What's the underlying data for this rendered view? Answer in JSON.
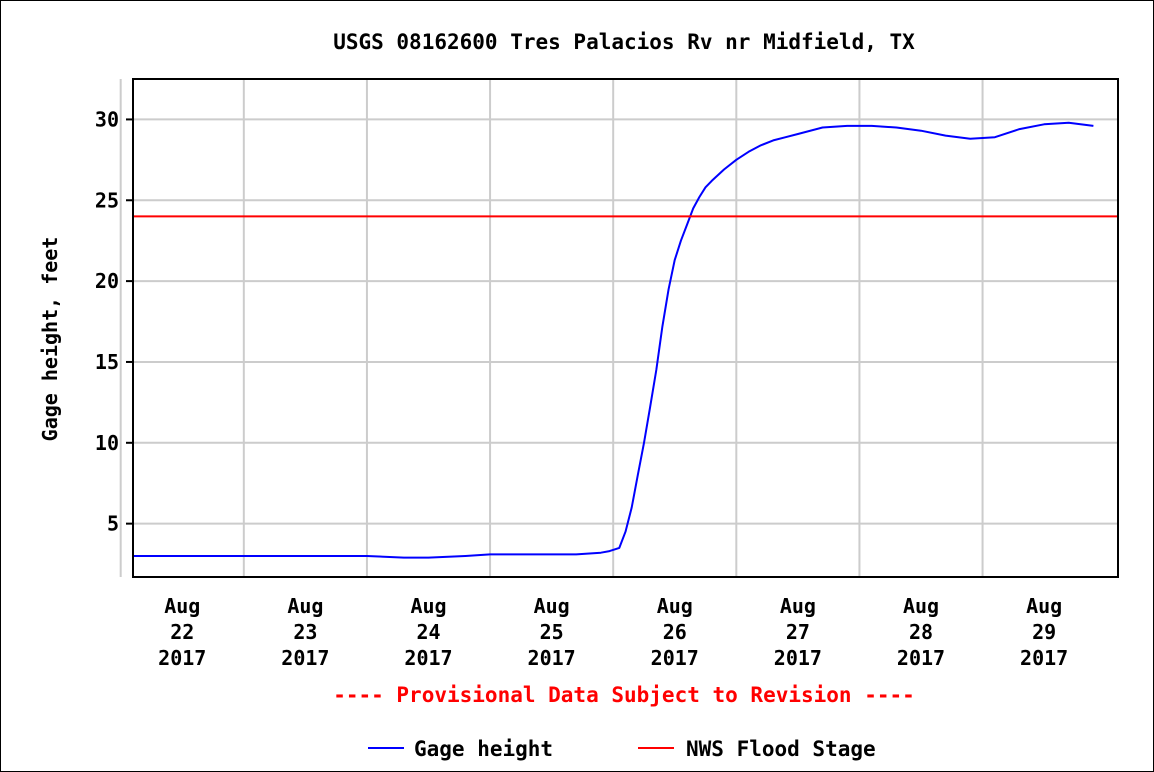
{
  "chart_data": {
    "type": "line",
    "title": "USGS 08162600 Tres Palacios Rv nr Midfield, TX",
    "xlabel": "",
    "ylabel": "Gage height, feet",
    "ylim": [
      1.7,
      32.5
    ],
    "yticks": [
      5,
      10,
      15,
      20,
      25,
      30
    ],
    "xlim": [
      21.6,
      29.6
    ],
    "xticks": [
      {
        "x": 22,
        "month": "Aug",
        "day": "22",
        "year": "2017"
      },
      {
        "x": 23,
        "month": "Aug",
        "day": "23",
        "year": "2017"
      },
      {
        "x": 24,
        "month": "Aug",
        "day": "24",
        "year": "2017"
      },
      {
        "x": 25,
        "month": "Aug",
        "day": "25",
        "year": "2017"
      },
      {
        "x": 26,
        "month": "Aug",
        "day": "26",
        "year": "2017"
      },
      {
        "x": 27,
        "month": "Aug",
        "day": "27",
        "year": "2017"
      },
      {
        "x": 28,
        "month": "Aug",
        "day": "28",
        "year": "2017"
      },
      {
        "x": 29,
        "month": "Aug",
        "day": "29",
        "year": "2017"
      }
    ],
    "grid": true,
    "series": [
      {
        "name": "Gage height",
        "color": "#0000ff",
        "x": [
          21.6,
          22.0,
          22.5,
          22.8,
          23.0,
          23.5,
          23.8,
          24.0,
          24.3,
          24.5,
          25.0,
          25.2,
          25.4,
          25.47,
          25.55,
          25.6,
          25.65,
          25.7,
          25.75,
          25.8,
          25.85,
          25.9,
          25.95,
          26.0,
          26.05,
          26.1,
          26.15,
          26.2,
          26.25,
          26.3,
          26.4,
          26.5,
          26.6,
          26.7,
          26.8,
          26.9,
          27.0,
          27.2,
          27.4,
          27.6,
          27.8,
          28.0,
          28.2,
          28.4,
          28.6,
          28.8,
          29.0,
          29.2,
          29.4
        ],
        "values": [
          3.0,
          3.0,
          3.0,
          3.0,
          3.0,
          3.0,
          2.9,
          2.9,
          3.0,
          3.1,
          3.1,
          3.1,
          3.2,
          3.3,
          3.5,
          4.5,
          6.0,
          8.0,
          10.0,
          12.2,
          14.5,
          17.2,
          19.5,
          21.3,
          22.5,
          23.5,
          24.5,
          25.2,
          25.8,
          26.2,
          26.9,
          27.5,
          28.0,
          28.4,
          28.7,
          28.9,
          29.1,
          29.5,
          29.6,
          29.6,
          29.5,
          29.3,
          29.0,
          28.8,
          28.9,
          29.4,
          29.7,
          29.8,
          29.6
        ]
      },
      {
        "name": "NWS Flood Stage",
        "color": "#ff0000",
        "x": [
          21.6,
          29.6
        ],
        "values": [
          24,
          24
        ]
      }
    ],
    "notice": "---- Provisional Data Subject to Revision ----",
    "legend": [
      {
        "label": "Gage height",
        "color": "#0000ff"
      },
      {
        "label": "NWS Flood Stage",
        "color": "#ff0000"
      }
    ],
    "legend_position": "bottom-center"
  }
}
